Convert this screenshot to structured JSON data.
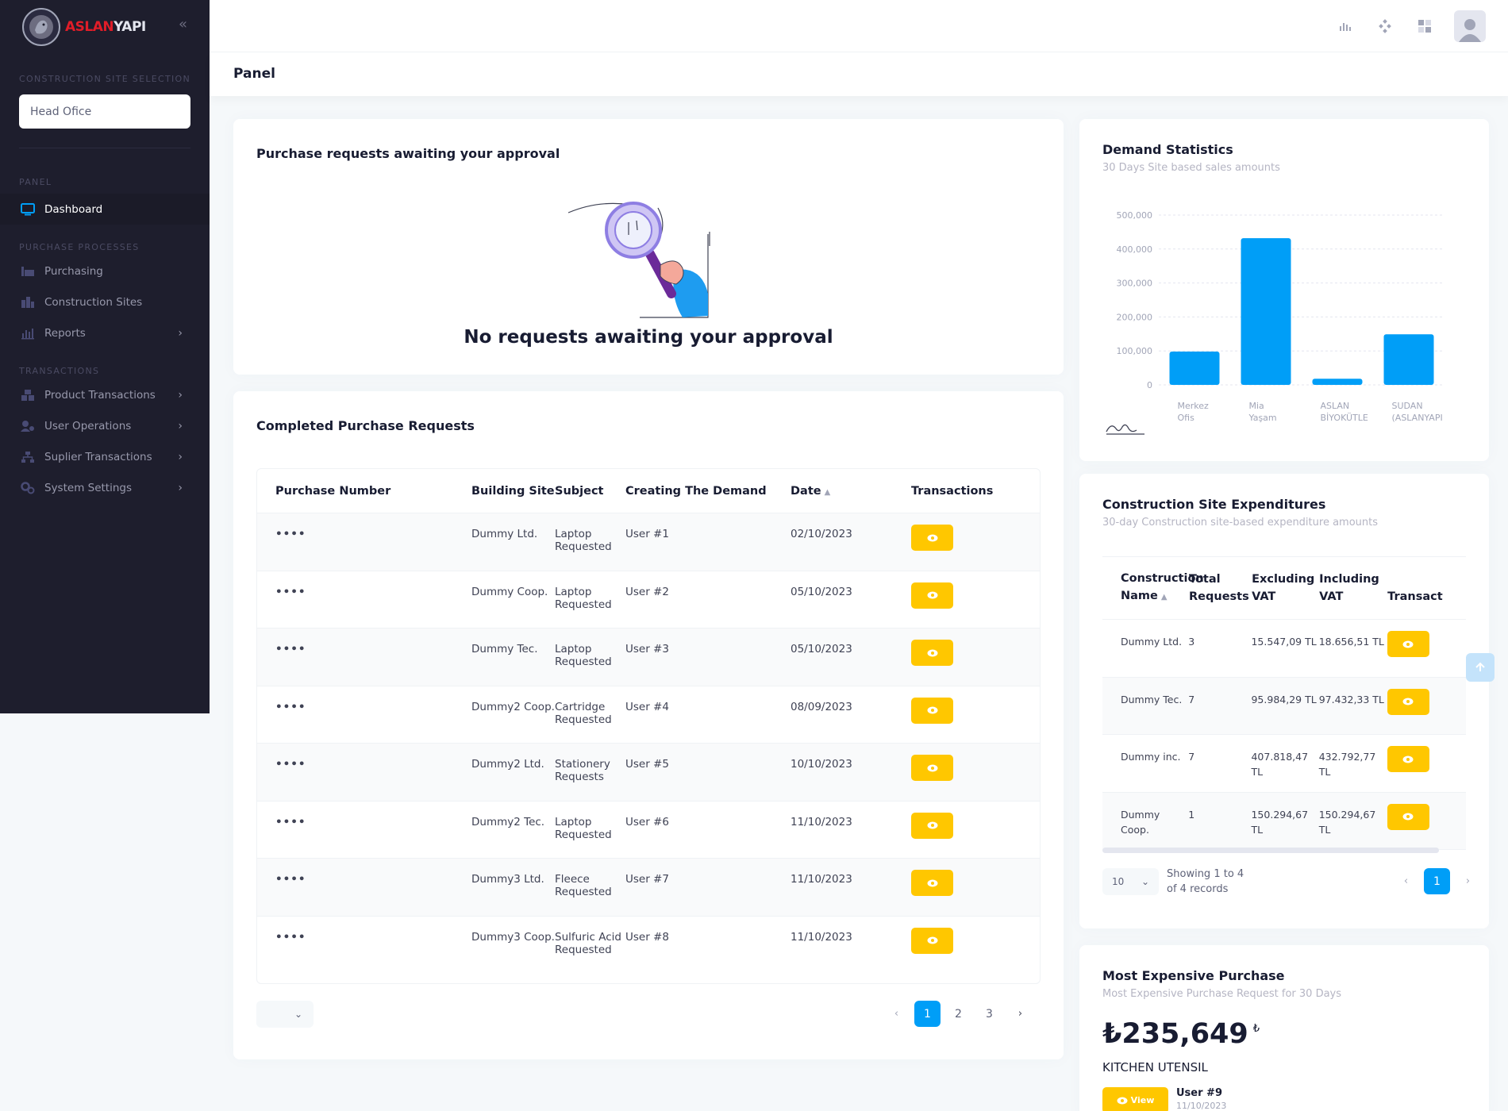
{
  "brand": {
    "part1": "ASLAN",
    "part2": "YAPI"
  },
  "sidebar": {
    "site_section": "CONSTRUCTION SITE SELECTION",
    "site_value": "Head Ofice",
    "panel_section": "PANEL",
    "dashboard": "Dashboard",
    "purchase_section": "PURCHASE PROCESSES",
    "purchasing": "Purchasing",
    "construction_sites": "Construction Sites",
    "reports": "Reports",
    "transactions_section": "TRANSACTIONS",
    "product_transactions": "Product Transactions",
    "user_operations": "User Operations",
    "supplier_transactions": "Suplier Transactions",
    "system_settings": "System Settings"
  },
  "toolbar": {
    "title": "Panel"
  },
  "approval": {
    "title": "Purchase requests awaiting your approval",
    "empty": "No requests awaiting your approval"
  },
  "completed": {
    "title": "Completed Purchase Requests",
    "headers": [
      "Purchase Number",
      "Building Site",
      "Subject",
      "Creating The Demand",
      "Date",
      "Transactions"
    ],
    "rows": [
      {
        "number": "••••",
        "site": "Dummy Ltd.",
        "subject": "Laptop Requested",
        "user": "User #1",
        "date": "02/10/2023"
      },
      {
        "number": "••••",
        "site": "Dummy Coop.",
        "subject": "Laptop Requested",
        "user": "User #2",
        "date": "05/10/2023"
      },
      {
        "number": "••••",
        "site": "Dummy Tec.",
        "subject": "Laptop Requested",
        "user": "User #3",
        "date": "05/10/2023"
      },
      {
        "number": "••••",
        "site": "Dummy2 Coop.",
        "subject": "Cartridge Requested",
        "user": "User #4",
        "date": "08/09/2023"
      },
      {
        "number": "••••",
        "site": "Dummy2 Ltd.",
        "subject": "Stationery Requests",
        "user": "User #5",
        "date": "10/10/2023"
      },
      {
        "number": "••••",
        "site": "Dummy2 Tec.",
        "subject": "Laptop Requested",
        "user": "User #6",
        "date": "11/10/2023"
      },
      {
        "number": "••••",
        "site": "Dummy3 Ltd.",
        "subject": "Fleece Requested",
        "user": "User #7",
        "date": "11/10/2023"
      },
      {
        "number": "••••",
        "site": "Dummy3 Coop.",
        "subject": "Sulfuric Acid Requested",
        "user": "User #8",
        "date": "11/10/2023"
      }
    ],
    "pages": [
      "1",
      "2",
      "3"
    ],
    "active_page": "1"
  },
  "demand": {
    "title": "Demand Statistics",
    "subtitle": "30 Days Site based sales amounts"
  },
  "chart_data": {
    "type": "bar",
    "categories": [
      "Merkez Ofis",
      "Mia Yaşam",
      "ASLAN BİYOKÜTLE",
      "SUDAN (ASLANYAPI"
    ],
    "category_lines": [
      [
        "Merkez",
        "Ofis"
      ],
      [
        "Mia",
        "Yaşam"
      ],
      [
        "ASLAN",
        "BİYOKÜTLE"
      ],
      [
        "SUDAN",
        "(ASLANYAPI"
      ]
    ],
    "values": [
      98000,
      432000,
      18000,
      149000
    ],
    "yticks": [
      "0",
      "100,000",
      "200,000",
      "300,000",
      "400,000",
      "500,000"
    ],
    "ylim": [
      0,
      500000
    ],
    "grid": true,
    "color": "#009ef7"
  },
  "expenditures": {
    "title": "Construction Site Expenditures",
    "subtitle": "30-day Construction site-based expenditure amounts",
    "headers": [
      "Construction Name",
      "Total Requests",
      "Excluding VAT",
      "Including VAT",
      "Transact"
    ],
    "rows": [
      {
        "name": "Dummy Ltd.",
        "total": "3",
        "excl": "15.547,09 TL",
        "incl": "18.656,51 TL"
      },
      {
        "name": "Dummy Tec.",
        "total": "7",
        "excl": "95.984,29 TL",
        "incl": "97.432,33 TL"
      },
      {
        "name": "Dummy inc.",
        "total": "7",
        "excl": "407.818,47 TL",
        "incl": "432.792,77 TL"
      },
      {
        "name": "Dummy Coop.",
        "total": "1",
        "excl": "150.294,67 TL",
        "incl": "150.294,67 TL"
      }
    ],
    "page_size": "10",
    "info": "Showing 1 to 4 of 4 records",
    "active_page": "1"
  },
  "expensive": {
    "title": "Most Expensive Purchase",
    "subtitle": "Most Expensive Purchase Request for 30 Days",
    "price": "₺235,649",
    "currency": "₺",
    "item": "KITCHEN UTENSIL",
    "view_label": "View",
    "user": "User #9",
    "date": "11/10/2023"
  }
}
